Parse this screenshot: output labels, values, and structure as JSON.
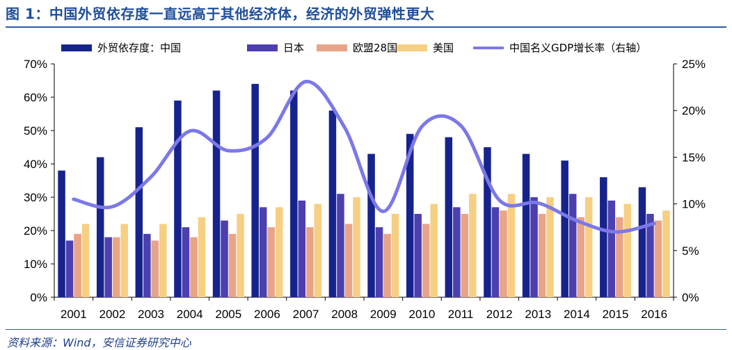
{
  "figure_title": "图 1：中国外贸依存度一直远高于其他经济体，经济的外贸弹性更大",
  "source": "资料来源：Wind，安信证券研究中心",
  "chart_data": {
    "type": "bar",
    "categories": [
      "2001",
      "2002",
      "2003",
      "2004",
      "2005",
      "2006",
      "2007",
      "2008",
      "2009",
      "2010",
      "2011",
      "2012",
      "2013",
      "2014",
      "2015",
      "2016"
    ],
    "series": [
      {
        "name": "外贸依存度：中国",
        "color": "#17238c",
        "values": [
          38,
          42,
          51,
          59,
          62,
          64,
          62,
          56,
          43,
          49,
          48,
          45,
          43,
          41,
          36,
          33
        ]
      },
      {
        "name": "日本",
        "color": "#4c3fb0",
        "values": [
          17,
          18,
          19,
          21,
          23,
          27,
          29,
          31,
          21,
          25,
          27,
          27,
          30,
          31,
          29,
          25
        ]
      },
      {
        "name": "欧盟28国",
        "color": "#e8a488",
        "values": [
          19,
          18,
          17,
          18,
          19,
          21,
          21,
          22,
          19,
          22,
          25,
          26,
          25,
          24,
          24,
          23
        ]
      },
      {
        "name": "美国",
        "color": "#f7cf83",
        "values": [
          22,
          22,
          22,
          24,
          25,
          27,
          28,
          30,
          25,
          28,
          31,
          31,
          30,
          30,
          28,
          26
        ]
      }
    ],
    "line": {
      "name": "中国名义GDP增长率（右轴）",
      "color": "#7b78e8",
      "axis": "right",
      "values": [
        10.5,
        9.7,
        12.9,
        17.8,
        15.7,
        17.1,
        23.1,
        18.2,
        9.2,
        18.3,
        18.4,
        10.4,
        10.1,
        8.2,
        7.0,
        7.9
      ]
    },
    "ylim_left": [
      0,
      70
    ],
    "ylim_right": [
      0,
      25
    ],
    "yticks_left": [
      "0%",
      "10%",
      "20%",
      "30%",
      "40%",
      "50%",
      "60%",
      "70%"
    ],
    "yticks_right": [
      "0%",
      "5%",
      "10%",
      "15%",
      "20%",
      "25%"
    ],
    "legend_position": "top",
    "grid": false
  }
}
